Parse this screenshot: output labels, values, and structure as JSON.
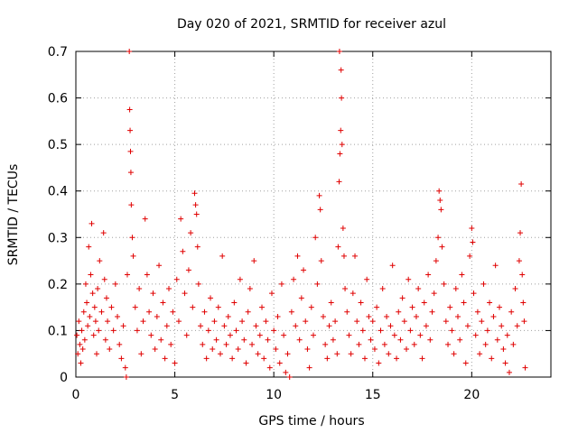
{
  "chart_data": {
    "type": "scatter",
    "title": "Day 020 of 2021, SRMTID for receiver azul",
    "xlabel": "GPS time / hours",
    "ylabel": "SRMTID / TECUs",
    "xlim": [
      0,
      24
    ],
    "ylim": [
      0,
      0.7
    ],
    "x_ticks": [
      0,
      5,
      10,
      15,
      20
    ],
    "x_tick_labels": [
      "0",
      "5",
      "10",
      "15",
      "20"
    ],
    "y_ticks": [
      0,
      0.1,
      0.2,
      0.3,
      0.4,
      0.5,
      0.6,
      0.7
    ],
    "y_tick_labels": [
      "0",
      "0.1",
      "0.2",
      "0.3",
      "0.4",
      "0.5",
      "0.6",
      "0.7"
    ],
    "grid": true,
    "marker": "+",
    "marker_color": "#e00000",
    "series": [
      {
        "name": "SRMTID",
        "points": [
          [
            0.05,
            0.09
          ],
          [
            0.1,
            0.05
          ],
          [
            0.15,
            0.12
          ],
          [
            0.2,
            0.07
          ],
          [
            0.25,
            0.03
          ],
          [
            0.3,
            0.1
          ],
          [
            0.35,
            0.06
          ],
          [
            0.4,
            0.14
          ],
          [
            0.45,
            0.08
          ],
          [
            0.5,
            0.2
          ],
          [
            0.55,
            0.16
          ],
          [
            0.6,
            0.11
          ],
          [
            0.65,
            0.28
          ],
          [
            0.7,
            0.13
          ],
          [
            0.75,
            0.22
          ],
          [
            0.8,
            0.33
          ],
          [
            0.85,
            0.18
          ],
          [
            0.9,
            0.09
          ],
          [
            0.95,
            0.15
          ],
          [
            1.0,
            0.12
          ],
          [
            1.05,
            0.05
          ],
          [
            1.1,
            0.19
          ],
          [
            1.15,
            0.1
          ],
          [
            1.2,
            0.25
          ],
          [
            1.3,
            0.14
          ],
          [
            1.4,
            0.31
          ],
          [
            1.45,
            0.21
          ],
          [
            1.5,
            0.08
          ],
          [
            1.55,
            0.17
          ],
          [
            1.6,
            0.12
          ],
          [
            1.7,
            0.06
          ],
          [
            1.8,
            0.15
          ],
          [
            1.9,
            0.1
          ],
          [
            2.0,
            0.2
          ],
          [
            2.1,
            0.13
          ],
          [
            2.2,
            0.07
          ],
          [
            2.3,
            0.04
          ],
          [
            2.4,
            0.11
          ],
          [
            2.5,
            0.02
          ],
          [
            2.55,
            0.0
          ],
          [
            2.6,
            0.22
          ],
          [
            2.7,
            0.7
          ],
          [
            2.72,
            0.575
          ],
          [
            2.74,
            0.53
          ],
          [
            2.76,
            0.485
          ],
          [
            2.78,
            0.44
          ],
          [
            2.8,
            0.37
          ],
          [
            2.85,
            0.3
          ],
          [
            2.9,
            0.26
          ],
          [
            3.0,
            0.15
          ],
          [
            3.1,
            0.1
          ],
          [
            3.2,
            0.19
          ],
          [
            3.3,
            0.05
          ],
          [
            3.4,
            0.12
          ],
          [
            3.5,
            0.34
          ],
          [
            3.6,
            0.22
          ],
          [
            3.7,
            0.14
          ],
          [
            3.8,
            0.09
          ],
          [
            3.9,
            0.18
          ],
          [
            4.0,
            0.06
          ],
          [
            4.1,
            0.13
          ],
          [
            4.2,
            0.24
          ],
          [
            4.3,
            0.08
          ],
          [
            4.4,
            0.16
          ],
          [
            4.5,
            0.04
          ],
          [
            4.6,
            0.11
          ],
          [
            4.7,
            0.19
          ],
          [
            4.8,
            0.07
          ],
          [
            4.9,
            0.14
          ],
          [
            5.0,
            0.03
          ],
          [
            5.1,
            0.21
          ],
          [
            5.2,
            0.12
          ],
          [
            5.3,
            0.34
          ],
          [
            5.4,
            0.27
          ],
          [
            5.5,
            0.18
          ],
          [
            5.6,
            0.09
          ],
          [
            5.7,
            0.23
          ],
          [
            5.8,
            0.31
          ],
          [
            5.9,
            0.15
          ],
          [
            6.0,
            0.395
          ],
          [
            6.05,
            0.37
          ],
          [
            6.1,
            0.35
          ],
          [
            6.15,
            0.28
          ],
          [
            6.2,
            0.2
          ],
          [
            6.3,
            0.11
          ],
          [
            6.4,
            0.07
          ],
          [
            6.5,
            0.14
          ],
          [
            6.6,
            0.04
          ],
          [
            6.7,
            0.1
          ],
          [
            6.8,
            0.17
          ],
          [
            6.9,
            0.06
          ],
          [
            7.0,
            0.12
          ],
          [
            7.1,
            0.08
          ],
          [
            7.2,
            0.15
          ],
          [
            7.3,
            0.05
          ],
          [
            7.4,
            0.26
          ],
          [
            7.5,
            0.11
          ],
          [
            7.6,
            0.07
          ],
          [
            7.7,
            0.13
          ],
          [
            7.8,
            0.09
          ],
          [
            7.9,
            0.04
          ],
          [
            8.0,
            0.16
          ],
          [
            8.1,
            0.1
          ],
          [
            8.2,
            0.06
          ],
          [
            8.3,
            0.21
          ],
          [
            8.4,
            0.12
          ],
          [
            8.5,
            0.08
          ],
          [
            8.6,
            0.03
          ],
          [
            8.7,
            0.14
          ],
          [
            8.8,
            0.19
          ],
          [
            8.9,
            0.07
          ],
          [
            9.0,
            0.25
          ],
          [
            9.1,
            0.11
          ],
          [
            9.2,
            0.05
          ],
          [
            9.3,
            0.09
          ],
          [
            9.4,
            0.15
          ],
          [
            9.5,
            0.04
          ],
          [
            9.6,
            0.12
          ],
          [
            9.7,
            0.08
          ],
          [
            9.8,
            0.02
          ],
          [
            9.9,
            0.18
          ],
          [
            10.0,
            0.1
          ],
          [
            10.1,
            0.06
          ],
          [
            10.2,
            0.13
          ],
          [
            10.3,
            0.03
          ],
          [
            10.4,
            0.2
          ],
          [
            10.5,
            0.09
          ],
          [
            10.6,
            0.01
          ],
          [
            10.7,
            0.05
          ],
          [
            10.8,
            0.0
          ],
          [
            10.9,
            0.14
          ],
          [
            11.0,
            0.21
          ],
          [
            11.1,
            0.11
          ],
          [
            11.2,
            0.26
          ],
          [
            11.3,
            0.08
          ],
          [
            11.4,
            0.17
          ],
          [
            11.5,
            0.23
          ],
          [
            11.6,
            0.12
          ],
          [
            11.7,
            0.06
          ],
          [
            11.8,
            0.02
          ],
          [
            11.9,
            0.15
          ],
          [
            12.0,
            0.09
          ],
          [
            12.1,
            0.3
          ],
          [
            12.2,
            0.2
          ],
          [
            12.3,
            0.39
          ],
          [
            12.35,
            0.36
          ],
          [
            12.4,
            0.25
          ],
          [
            12.5,
            0.13
          ],
          [
            12.6,
            0.07
          ],
          [
            12.7,
            0.04
          ],
          [
            12.8,
            0.11
          ],
          [
            12.9,
            0.16
          ],
          [
            13.0,
            0.08
          ],
          [
            13.1,
            0.12
          ],
          [
            13.2,
            0.05
          ],
          [
            13.25,
            0.28
          ],
          [
            13.3,
            0.42
          ],
          [
            13.32,
            0.7
          ],
          [
            13.34,
            0.48
          ],
          [
            13.38,
            0.53
          ],
          [
            13.4,
            0.66
          ],
          [
            13.42,
            0.6
          ],
          [
            13.45,
            0.5
          ],
          [
            13.5,
            0.32
          ],
          [
            13.55,
            0.26
          ],
          [
            13.6,
            0.19
          ],
          [
            13.7,
            0.14
          ],
          [
            13.8,
            0.09
          ],
          [
            13.9,
            0.05
          ],
          [
            14.0,
            0.18
          ],
          [
            14.1,
            0.26
          ],
          [
            14.2,
            0.12
          ],
          [
            14.3,
            0.07
          ],
          [
            14.4,
            0.16
          ],
          [
            14.5,
            0.1
          ],
          [
            14.6,
            0.04
          ],
          [
            14.7,
            0.21
          ],
          [
            14.8,
            0.13
          ],
          [
            14.9,
            0.08
          ],
          [
            15.0,
            0.12
          ],
          [
            15.1,
            0.06
          ],
          [
            15.2,
            0.15
          ],
          [
            15.3,
            0.03
          ],
          [
            15.4,
            0.1
          ],
          [
            15.5,
            0.19
          ],
          [
            15.6,
            0.07
          ],
          [
            15.7,
            0.13
          ],
          [
            15.8,
            0.05
          ],
          [
            15.9,
            0.11
          ],
          [
            16.0,
            0.24
          ],
          [
            16.1,
            0.09
          ],
          [
            16.2,
            0.04
          ],
          [
            16.3,
            0.14
          ],
          [
            16.4,
            0.08
          ],
          [
            16.5,
            0.17
          ],
          [
            16.6,
            0.12
          ],
          [
            16.7,
            0.06
          ],
          [
            16.8,
            0.21
          ],
          [
            16.9,
            0.1
          ],
          [
            17.0,
            0.15
          ],
          [
            17.1,
            0.07
          ],
          [
            17.2,
            0.13
          ],
          [
            17.3,
            0.19
          ],
          [
            17.4,
            0.09
          ],
          [
            17.5,
            0.04
          ],
          [
            17.6,
            0.16
          ],
          [
            17.7,
            0.11
          ],
          [
            17.8,
            0.22
          ],
          [
            17.9,
            0.08
          ],
          [
            18.0,
            0.14
          ],
          [
            18.1,
            0.18
          ],
          [
            18.2,
            0.25
          ],
          [
            18.3,
            0.3
          ],
          [
            18.35,
            0.4
          ],
          [
            18.4,
            0.38
          ],
          [
            18.45,
            0.36
          ],
          [
            18.5,
            0.28
          ],
          [
            18.6,
            0.2
          ],
          [
            18.7,
            0.12
          ],
          [
            18.8,
            0.07
          ],
          [
            18.9,
            0.15
          ],
          [
            19.0,
            0.1
          ],
          [
            19.1,
            0.05
          ],
          [
            19.2,
            0.19
          ],
          [
            19.3,
            0.13
          ],
          [
            19.4,
            0.08
          ],
          [
            19.5,
            0.22
          ],
          [
            19.6,
            0.16
          ],
          [
            19.7,
            0.03
          ],
          [
            19.8,
            0.11
          ],
          [
            19.9,
            0.26
          ],
          [
            20.0,
            0.32
          ],
          [
            20.05,
            0.29
          ],
          [
            20.1,
            0.18
          ],
          [
            20.2,
            0.09
          ],
          [
            20.3,
            0.14
          ],
          [
            20.4,
            0.05
          ],
          [
            20.5,
            0.12
          ],
          [
            20.6,
            0.2
          ],
          [
            20.7,
            0.07
          ],
          [
            20.8,
            0.1
          ],
          [
            20.9,
            0.16
          ],
          [
            21.0,
            0.04
          ],
          [
            21.1,
            0.13
          ],
          [
            21.2,
            0.24
          ],
          [
            21.3,
            0.08
          ],
          [
            21.4,
            0.15
          ],
          [
            21.5,
            0.11
          ],
          [
            21.6,
            0.06
          ],
          [
            21.7,
            0.03
          ],
          [
            21.8,
            0.09
          ],
          [
            21.9,
            0.01
          ],
          [
            22.0,
            0.14
          ],
          [
            22.1,
            0.07
          ],
          [
            22.2,
            0.19
          ],
          [
            22.3,
            0.11
          ],
          [
            22.4,
            0.25
          ],
          [
            22.45,
            0.31
          ],
          [
            22.5,
            0.415
          ],
          [
            22.55,
            0.22
          ],
          [
            22.6,
            0.16
          ],
          [
            22.65,
            0.12
          ],
          [
            22.7,
            0.02
          ]
        ]
      }
    ]
  }
}
